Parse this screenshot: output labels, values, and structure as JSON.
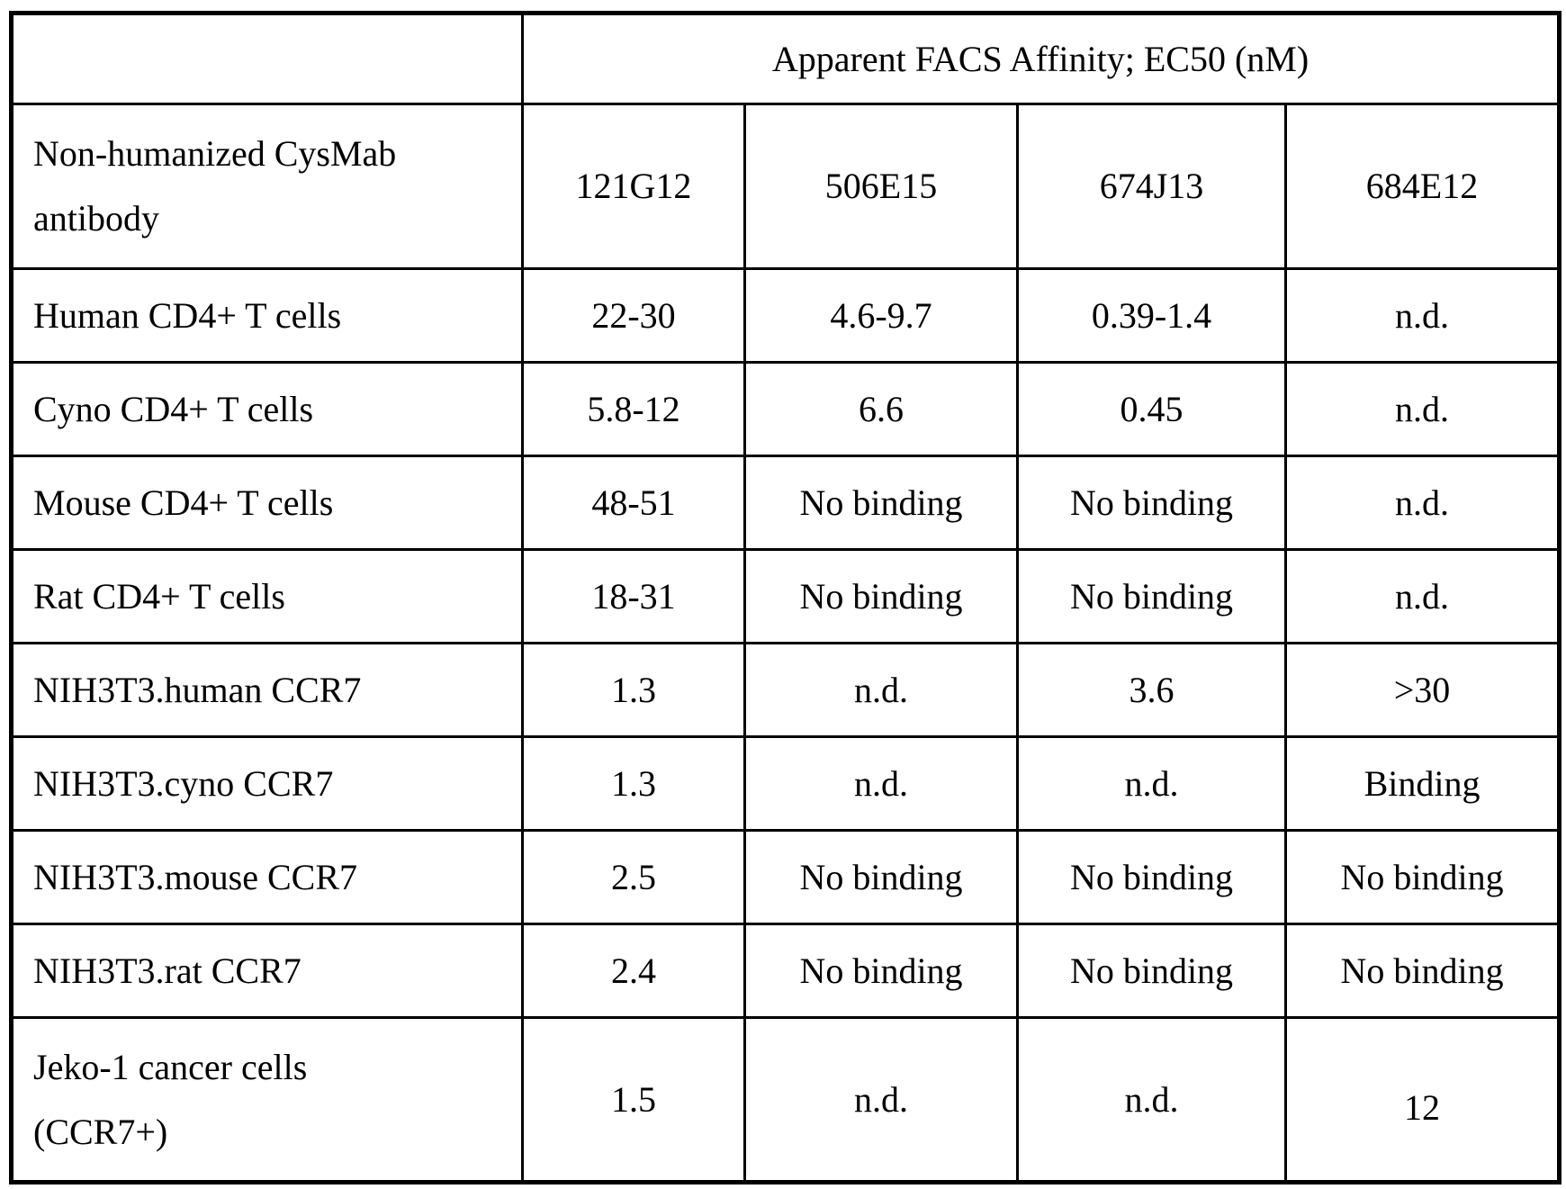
{
  "table": {
    "corner": "",
    "title": "Apparent FACS Affinity; EC50 (nM)",
    "row_header_label": "Non-humanized CysMab\nantibody",
    "columns": [
      "121G12",
      "506E15",
      "674J13",
      "684E12"
    ],
    "rows": [
      {
        "label": "Human CD4+ T cells",
        "values": [
          "22-30",
          "4.6-9.7",
          "0.39-1.4",
          "n.d."
        ]
      },
      {
        "label": "Cyno CD4+ T cells",
        "values": [
          "5.8-12",
          "6.6",
          "0.45",
          "n.d."
        ]
      },
      {
        "label": "Mouse CD4+ T cells",
        "values": [
          "48-51",
          "No binding",
          "No binding",
          "n.d."
        ]
      },
      {
        "label": "Rat CD4+ T cells",
        "values": [
          "18-31",
          "No binding",
          "No binding",
          "n.d."
        ]
      },
      {
        "label": "NIH3T3.human CCR7",
        "values": [
          "1.3",
          "n.d.",
          "3.6",
          ">30"
        ]
      },
      {
        "label": "NIH3T3.cyno CCR7",
        "values": [
          "1.3",
          "n.d.",
          "n.d.",
          "Binding"
        ]
      },
      {
        "label": "NIH3T3.mouse CCR7",
        "values": [
          "2.5",
          "No binding",
          "No binding",
          "No binding"
        ]
      },
      {
        "label": "NIH3T3.rat CCR7",
        "values": [
          "2.4",
          "No binding",
          "No binding",
          "No binding"
        ]
      },
      {
        "label": "Jeko-1 cancer cells\n(CCR7+)",
        "values": [
          "1.5",
          "n.d.",
          "n.d.",
          "12"
        ]
      }
    ]
  },
  "colors": {
    "background": "#ffffff",
    "text": "#000000",
    "border": "#000000"
  }
}
